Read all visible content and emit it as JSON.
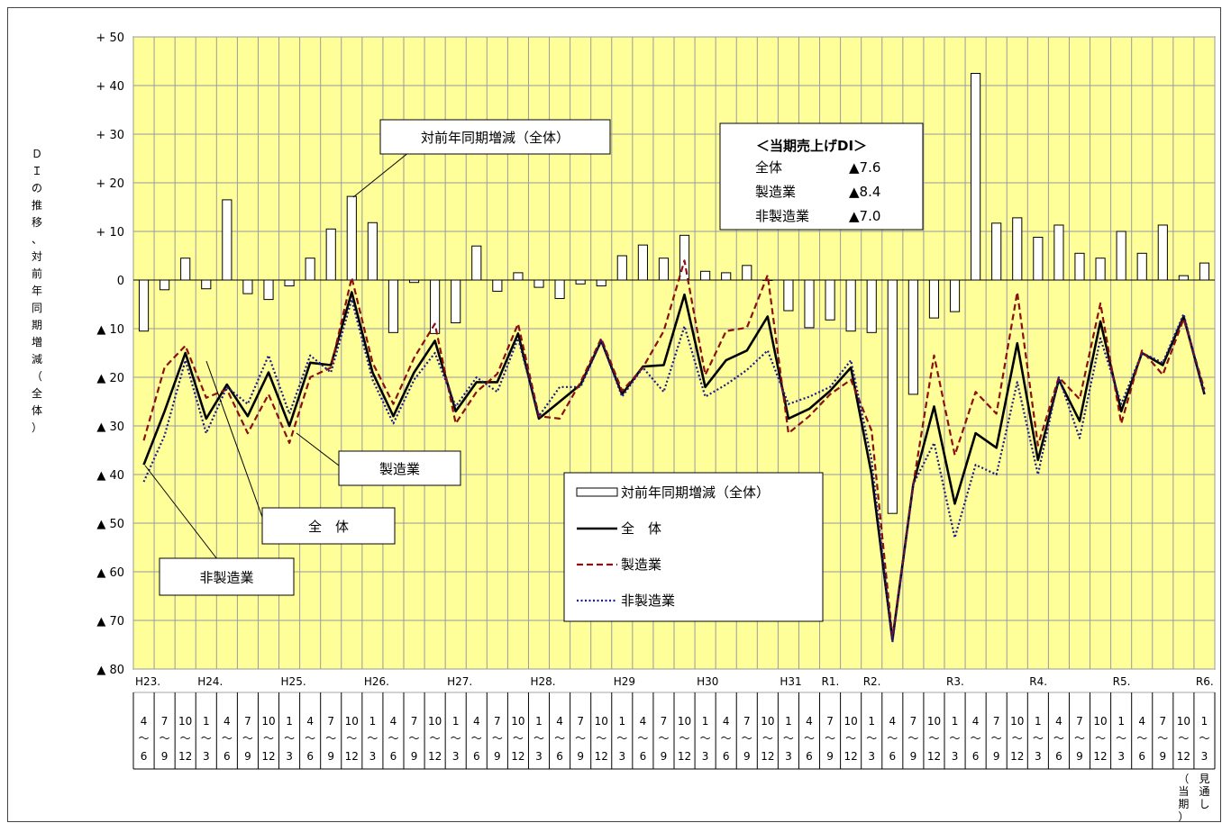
{
  "chart_data": {
    "type": "line",
    "title": "",
    "ylabel": "ＤＩの推移、対前年同期増減（全体）",
    "ylim": [
      -80,
      50
    ],
    "ytick_values": [
      50,
      40,
      30,
      20,
      10,
      0,
      -10,
      -20,
      -30,
      -40,
      -50,
      -60,
      -70,
      -80
    ],
    "ytick_labels": [
      "+ 50",
      "+ 40",
      "+ 30",
      "+ 20",
      "+ 10",
      "0",
      "▲ 10",
      "▲ 20",
      "▲ 30",
      "▲ 40",
      "▲ 50",
      "▲ 60",
      "▲ 70",
      "▲ 80"
    ],
    "grid": true,
    "years": [
      "H23.",
      "",
      "",
      "H24.",
      "",
      "",
      "",
      "H25.",
      "",
      "",
      "",
      "H26.",
      "",
      "",
      "",
      "H27.",
      "",
      "",
      "",
      "H28.",
      "",
      "",
      "",
      "H29",
      "",
      "",
      "",
      "H30",
      "",
      "",
      "",
      "H31",
      "",
      "R1.",
      "",
      "R2.",
      "",
      "",
      "",
      "R3.",
      "",
      "",
      "",
      "R4.",
      "",
      "",
      "",
      "R5.",
      "",
      "",
      "",
      "R6."
    ],
    "quarter_top": [
      "4",
      "7",
      "10",
      "1",
      "4",
      "7",
      "10",
      "1",
      "4",
      "7",
      "10",
      "1",
      "4",
      "7",
      "10",
      "1",
      "4",
      "7",
      "10",
      "1",
      "4",
      "7",
      "10",
      "1",
      "4",
      "7",
      "10",
      "1",
      "4",
      "7",
      "10",
      "1",
      "4",
      "7",
      "10",
      "1",
      "4",
      "7",
      "10",
      "1",
      "4",
      "7",
      "10",
      "1",
      "4",
      "7",
      "10",
      "1",
      "4",
      "7",
      "10",
      "1"
    ],
    "tilde": "～",
    "quarter_bottom": [
      "6",
      "9",
      "12",
      "3",
      "6",
      "9",
      "12",
      "3",
      "6",
      "9",
      "12",
      "3",
      "6",
      "9",
      "12",
      "3",
      "6",
      "9",
      "12",
      "3",
      "6",
      "9",
      "12",
      "3",
      "6",
      "9",
      "12",
      "3",
      "6",
      "9",
      "12",
      "3",
      "6",
      "9",
      "12",
      "3",
      "6",
      "9",
      "12",
      "3",
      "6",
      "9",
      "12",
      "3",
      "6",
      "9",
      "12",
      "3",
      "6",
      "9",
      "12",
      "3"
    ],
    "period_notes": [
      {
        "index": 50,
        "text": "（当期）"
      },
      {
        "index": 51,
        "text": "見通し"
      }
    ],
    "bars": {
      "name": "対前年同期増減（全体）",
      "values": [
        -10.5,
        -2,
        4.5,
        -1.8,
        16.5,
        -2.8,
        -4,
        -1.2,
        4.5,
        10.5,
        17.2,
        11.8,
        -10.8,
        -0.5,
        -11,
        -8.8,
        7,
        -2.3,
        1.5,
        -1.5,
        -3.8,
        -0.8,
        -1.2,
        5,
        7.2,
        4.5,
        9.2,
        1.8,
        1.5,
        3,
        0,
        -6.3,
        -9.8,
        -8.2,
        -10.5,
        -10.8,
        -48,
        -23.5,
        -7.8,
        -6.5,
        42.5,
        11.7,
        12.8,
        8.8,
        11.3,
        5.5,
        4.5,
        10,
        5.5,
        11.3,
        0.9,
        3.5
      ]
    },
    "series": [
      {
        "name": "全　体",
        "color": "#000000",
        "style": "solid",
        "values": [
          -38,
          -27,
          -15,
          -28.5,
          -21.5,
          -28,
          -19,
          -30,
          -17,
          -17.5,
          -2.5,
          -19,
          -28,
          -19,
          -12.5,
          -27,
          -21,
          -21,
          -11,
          -28.5,
          -25,
          -21.5,
          -12.5,
          -23.5,
          -17.8,
          -17.5,
          -3,
          -22,
          -16.5,
          -14.5,
          -7.5,
          -28.5,
          -26.5,
          -22.8,
          -18,
          -40,
          -74,
          -42,
          -26,
          -46,
          -31.5,
          -34.5,
          -13,
          -37,
          -20.5,
          -29,
          -8.5,
          -27,
          -15,
          -17.5,
          -7.5,
          -23.5
        ]
      },
      {
        "name": "製造業",
        "color": "#8b0f0f",
        "style": "dashed",
        "values": [
          -33,
          -18,
          -13.5,
          -24.2,
          -22.5,
          -31.5,
          -23.5,
          -33.5,
          -20,
          -18,
          0.5,
          -17,
          -25.5,
          -16,
          -9,
          -29.5,
          -23,
          -19.3,
          -9,
          -28,
          -28.5,
          -21,
          -12,
          -22.8,
          -18,
          -10.5,
          4,
          -19.5,
          -10.5,
          -9.8,
          1,
          -31.5,
          -28,
          -23.5,
          -20.5,
          -31,
          -73.5,
          -42,
          -15.5,
          -36,
          -23,
          -27.5,
          -2.5,
          -34,
          -20,
          -24.5,
          -4.8,
          -29.5,
          -14.5,
          -19.5,
          -8,
          -22.5
        ]
      },
      {
        "name": "非製造業",
        "color": "#1a1a8c",
        "style": "dotted",
        "values": [
          -41.5,
          -32,
          -16.5,
          -31.5,
          -22,
          -25.5,
          -15.5,
          -27.5,
          -15.5,
          -19,
          -4,
          -20.5,
          -29.5,
          -20.5,
          -15,
          -26,
          -20,
          -23,
          -12,
          -28,
          -22,
          -22,
          -12.5,
          -24,
          -18,
          -23,
          -9.5,
          -24,
          -21.5,
          -18.5,
          -14.5,
          -25.5,
          -24,
          -22,
          -16.5,
          -37,
          -74.5,
          -42,
          -33.5,
          -53,
          -38,
          -40,
          -21,
          -40,
          -20,
          -32.5,
          -12,
          -25.5,
          -15,
          -17,
          -7,
          -23.5
        ]
      }
    ],
    "callouts": {
      "bars_label": "対前年同期増減（全体）",
      "manuf_label": "製造業",
      "total_label": "全　体",
      "nonmanuf_label": "非製造業"
    },
    "infobox": {
      "title": "＜当期売上げDI＞",
      "rows": [
        {
          "label": "全体",
          "value": "▲7.6"
        },
        {
          "label": "製造業",
          "value": "▲8.4"
        },
        {
          "label": "非製造業",
          "value": "▲7.0"
        }
      ]
    },
    "legend": [
      {
        "label": "対前年同期増減（全体）",
        "kind": "bar"
      },
      {
        "label": "全　体",
        "kind": "solid"
      },
      {
        "label": "製造業",
        "kind": "dashed"
      },
      {
        "label": "非製造業",
        "kind": "dotted"
      }
    ],
    "colors": {
      "plot_bg": "#ffff99",
      "grid": "#9a9a9a",
      "bar_fill": "#ffffff",
      "bar_stroke": "#000000"
    }
  }
}
